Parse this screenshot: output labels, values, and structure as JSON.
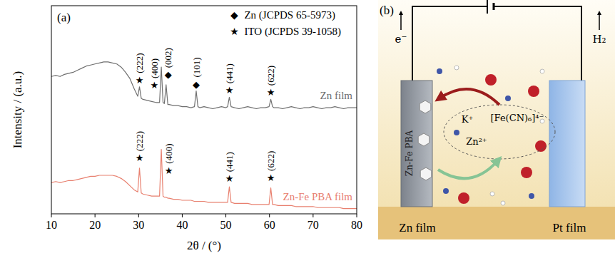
{
  "chart_data": {
    "type": "line",
    "panel": "(a)",
    "x_label": "2θ / (°)",
    "y_label": "Intensity / (a.u.)",
    "xlim": [
      10,
      80
    ],
    "xticks": [
      10,
      20,
      30,
      40,
      50,
      60,
      70,
      80
    ],
    "ylim": [
      0,
      100
    ],
    "tick_labels": "x",
    "legend": "top-right",
    "x": [
      10,
      11,
      12,
      13,
      14,
      15,
      16,
      17,
      18,
      19,
      20,
      21,
      22,
      23,
      24,
      25,
      26,
      27,
      28,
      29,
      29.8,
      30.2,
      30.6,
      31,
      32,
      33,
      34,
      34.8,
      35.2,
      35.6,
      35.9,
      36.3,
      36.7,
      37,
      38,
      39,
      40,
      41,
      42,
      42.8,
      43.2,
      43.6,
      44,
      45,
      46,
      47,
      48,
      49,
      50,
      50.4,
      50.8,
      51.2,
      52,
      53,
      54,
      55,
      56,
      57,
      58,
      59,
      59.9,
      60.3,
      60.7,
      61,
      62,
      63,
      64,
      65,
      66,
      67,
      68,
      69,
      70,
      71,
      72,
      73,
      74,
      75,
      76,
      77,
      78,
      79,
      80
    ],
    "series": [
      {
        "name": "Zn film",
        "color": "#707070",
        "values": [
          66,
          66.5,
          66,
          67,
          67.5,
          68,
          69,
          70,
          71,
          71.5,
          72,
          72.5,
          73,
          73,
          72.5,
          72,
          70.5,
          68,
          65,
          60,
          56.5,
          61,
          55.5,
          55,
          54.5,
          54,
          53.5,
          53.5,
          70.5,
          53.5,
          53,
          62,
          52.5,
          52.5,
          52,
          52,
          51.5,
          51.5,
          51,
          51.5,
          59,
          51.5,
          51,
          51.5,
          51,
          50.5,
          51,
          51.5,
          51,
          51.5,
          56,
          51.5,
          51,
          50.5,
          51,
          51.5,
          51,
          50.5,
          51,
          51,
          51.5,
          55,
          51.5,
          51,
          51,
          50.5,
          51,
          51.5,
          51,
          50.5,
          51,
          51,
          51.5,
          51,
          50.5,
          51,
          51,
          51.5,
          51,
          50.5,
          51,
          51,
          51
        ]
      },
      {
        "name": "Zn-Fe PBA film",
        "color": "#e8806f",
        "values": [
          15,
          15.5,
          15,
          15.5,
          16,
          16,
          16.5,
          17,
          17.5,
          18,
          18,
          18.5,
          18.5,
          18.5,
          18.5,
          18,
          17,
          15.5,
          13.5,
          11.5,
          10.5,
          22,
          10,
          9.5,
          9,
          8.5,
          8.5,
          8.5,
          31,
          8.5,
          8,
          8,
          7.5,
          7.5,
          7,
          7,
          6.5,
          6.5,
          6.5,
          6,
          6,
          6,
          6,
          6,
          5.5,
          5.5,
          5.5,
          5.5,
          5.5,
          5.5,
          13,
          5.5,
          5,
          5,
          5,
          5,
          4.5,
          4.5,
          4.5,
          4.5,
          4.5,
          12.5,
          4.5,
          4.5,
          4,
          4,
          4,
          4,
          3.5,
          3.5,
          3.5,
          3.5,
          3.5,
          3,
          3,
          3,
          3,
          3,
          3,
          2.5,
          2.5,
          2.5,
          2.5
        ]
      }
    ],
    "markers": [
      {
        "symbol": "◆",
        "label": "Zn (JCPDS 65-5973)"
      },
      {
        "symbol": "★",
        "label": "ITO (JCPDS 39-1058)"
      }
    ],
    "annotations": [
      {
        "text": "(222)",
        "symbol": "★",
        "x": 30.2,
        "y": 64.5
      },
      {
        "text": "(400)",
        "symbol": "★",
        "x": 33.6,
        "y": 62
      },
      {
        "text": "(002)",
        "symbol": "◆",
        "x": 36.8,
        "y": 67
      },
      {
        "text": "(101)",
        "symbol": "◆",
        "x": 43.2,
        "y": 62.5
      },
      {
        "text": "(441)",
        "symbol": "★",
        "x": 50.8,
        "y": 59.5
      },
      {
        "text": "(622)",
        "symbol": "★",
        "x": 60.3,
        "y": 58.5
      },
      {
        "text": "(222)",
        "symbol": "★",
        "x": 30.2,
        "y": 27
      },
      {
        "text": "(400)",
        "symbol": "★",
        "x": 36.9,
        "y": 21
      },
      {
        "text": "(441)",
        "symbol": "★",
        "x": 50.8,
        "y": 17
      },
      {
        "text": "(622)",
        "symbol": "★",
        "x": 60.3,
        "y": 17.5
      }
    ]
  },
  "diagram": {
    "label": "(b)",
    "electron": "e⁻",
    "gas": "H₂",
    "electrode_coating": "Zn-Fe PBA",
    "ions": [
      "K⁺",
      "[Fe(CN)₆]⁴⁻",
      "Zn²⁺"
    ],
    "anode": "Zn film",
    "cathode": "Pt film"
  }
}
